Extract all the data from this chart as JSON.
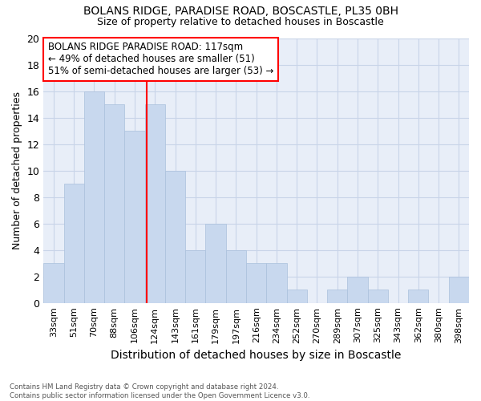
{
  "title1": "BOLANS RIDGE, PARADISE ROAD, BOSCASTLE, PL35 0BH",
  "title2": "Size of property relative to detached houses in Boscastle",
  "xlabel": "Distribution of detached houses by size in Boscastle",
  "ylabel": "Number of detached properties",
  "categories": [
    "33sqm",
    "51sqm",
    "70sqm",
    "88sqm",
    "106sqm",
    "124sqm",
    "143sqm",
    "161sqm",
    "179sqm",
    "197sqm",
    "216sqm",
    "234sqm",
    "252sqm",
    "270sqm",
    "289sqm",
    "307sqm",
    "325sqm",
    "343sqm",
    "362sqm",
    "380sqm",
    "398sqm"
  ],
  "values": [
    3,
    9,
    16,
    15,
    13,
    15,
    10,
    4,
    6,
    4,
    3,
    3,
    1,
    0,
    1,
    2,
    1,
    0,
    1,
    0,
    2
  ],
  "bar_color": "#c8d8ee",
  "bar_edge_color": "#aac0dc",
  "grid_color": "#c8d4e8",
  "vline_color": "red",
  "annotation_text": "BOLANS RIDGE PARADISE ROAD: 117sqm\n← 49% of detached houses are smaller (51)\n51% of semi-detached houses are larger (53) →",
  "annotation_box_color": "white",
  "annotation_box_edge": "red",
  "ylim": [
    0,
    20
  ],
  "yticks": [
    0,
    2,
    4,
    6,
    8,
    10,
    12,
    14,
    16,
    18,
    20
  ],
  "footnote": "Contains HM Land Registry data © Crown copyright and database right 2024.\nContains public sector information licensed under the Open Government Licence v3.0.",
  "fig_bg_color": "#ffffff",
  "ax_bg_color": "#e8eef8"
}
